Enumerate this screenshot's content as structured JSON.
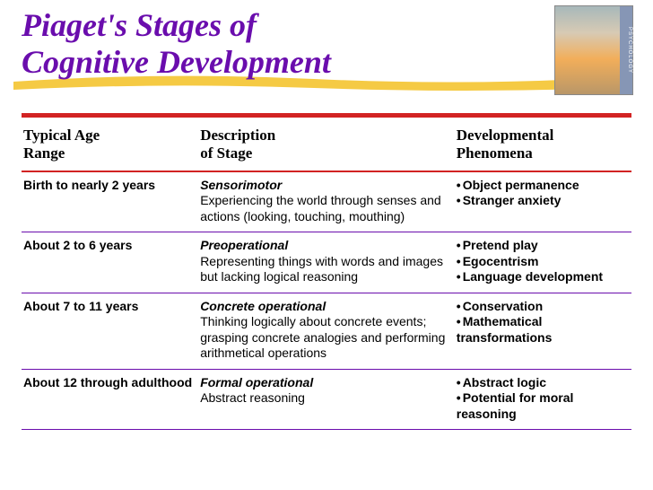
{
  "title_line1": "Piaget's Stages of",
  "title_line2": "Cognitive Development",
  "book_spine": "PSYCHOLOGY",
  "colors": {
    "title": "#6a0dad",
    "red_bar": "#d22323",
    "row_border": "#6a0dad",
    "brush": "#f4c430"
  },
  "headers": {
    "age": "Typical Age\nRange",
    "desc": "Description\nof Stage",
    "phen": "Developmental\nPhenomena"
  },
  "rows": [
    {
      "age": "Birth to nearly 2 years",
      "stage": "Sensorimotor",
      "desc": "Experiencing the world through senses and actions (looking, touching, mouthing)",
      "phenomena": [
        "Object permanence",
        "Stranger anxiety"
      ]
    },
    {
      "age": "About 2 to 6 years",
      "stage": "Preoperational",
      "desc": "Representing things with words and images but lacking logical reasoning",
      "phenomena": [
        "Pretend play",
        "Egocentrism",
        "Language development"
      ]
    },
    {
      "age": "About 7 to 11 years",
      "stage": "Concrete operational",
      "desc": "Thinking logically about concrete events; grasping concrete analogies and performing arithmetical operations",
      "phenomena": [
        "Conservation",
        "Mathematical transformations"
      ]
    },
    {
      "age": "About 12 through adulthood",
      "stage": "Formal operational",
      "desc": "Abstract reasoning",
      "phenomena": [
        "Abstract logic",
        "Potential for moral reasoning"
      ]
    }
  ]
}
